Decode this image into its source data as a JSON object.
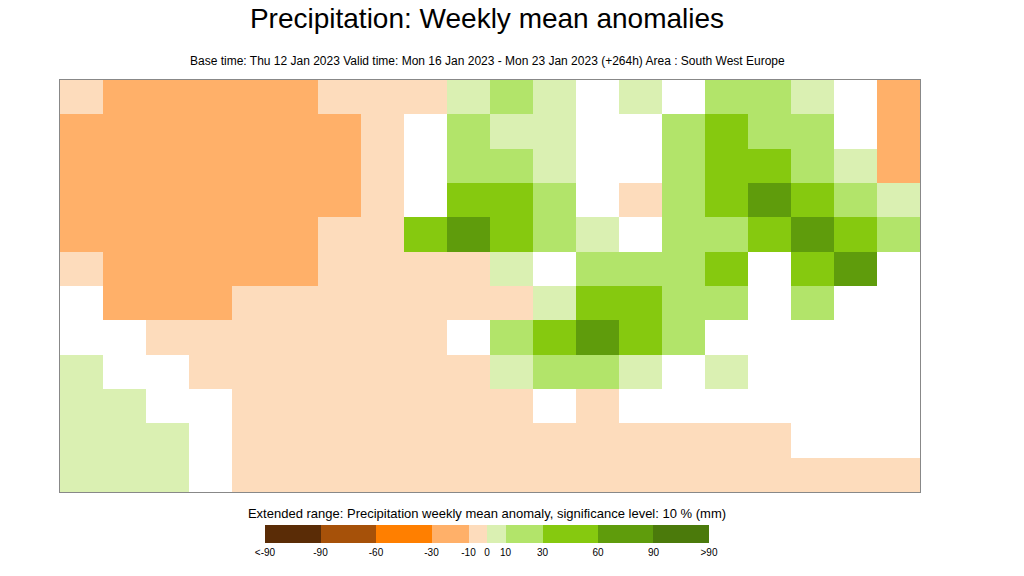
{
  "chart_data": {
    "type": "heatmap",
    "title": "Precipitation: Weekly mean anomalies",
    "subtitle": "Base time: Thu 12 Jan 2023 Valid time: Mon 16 Jan 2023 - Mon 23 Jan 2023 (+264h) Area : South West Europe",
    "tick_labels": false,
    "grid": false,
    "cells": [
      [
        -5,
        -20,
        -20,
        -20,
        -20,
        -20,
        -5,
        -5,
        -5,
        5,
        15,
        5,
        null,
        5,
        null,
        15,
        15,
        5,
        null,
        -20
      ],
      [
        -20,
        -20,
        -20,
        -20,
        -20,
        -20,
        -20,
        -5,
        null,
        15,
        5,
        5,
        null,
        null,
        15,
        30,
        15,
        15,
        null,
        -20
      ],
      [
        -20,
        -20,
        -20,
        -20,
        -20,
        -20,
        -20,
        -5,
        null,
        15,
        15,
        5,
        null,
        null,
        20,
        45,
        30,
        15,
        5,
        -20
      ],
      [
        -20,
        -20,
        -20,
        -20,
        -20,
        -20,
        -20,
        -5,
        null,
        30,
        40,
        20,
        null,
        -5,
        15,
        30,
        70,
        40,
        15,
        5
      ],
      [
        -20,
        -20,
        -20,
        -20,
        -20,
        -20,
        -5,
        -5,
        40,
        70,
        45,
        15,
        5,
        null,
        20,
        15,
        40,
        70,
        30,
        20
      ],
      [
        -5,
        -20,
        -20,
        -20,
        -20,
        -20,
        -5,
        -5,
        -5,
        -5,
        5,
        null,
        15,
        15,
        20,
        30,
        null,
        40,
        60,
        null
      ],
      [
        null,
        -20,
        -20,
        -20,
        -5,
        -5,
        -5,
        -5,
        -5,
        -5,
        -5,
        5,
        30,
        30,
        15,
        20,
        null,
        15,
        null,
        null
      ],
      [
        null,
        null,
        -5,
        -5,
        -5,
        -5,
        -5,
        -5,
        -5,
        null,
        15,
        40,
        70,
        40,
        15,
        null,
        null,
        null,
        null,
        null
      ],
      [
        5,
        null,
        null,
        -5,
        -5,
        -5,
        -5,
        -5,
        -5,
        -5,
        5,
        15,
        15,
        5,
        null,
        5,
        null,
        null,
        null,
        null
      ],
      [
        5,
        5,
        null,
        null,
        -5,
        -5,
        -5,
        -5,
        -5,
        -5,
        -5,
        null,
        -5,
        null,
        null,
        null,
        null,
        null,
        null,
        null
      ],
      [
        5,
        5,
        5,
        null,
        -5,
        -5,
        -5,
        -5,
        -5,
        -5,
        -5,
        -5,
        -5,
        -5,
        -5,
        -5,
        -5,
        null,
        null,
        null
      ],
      [
        5,
        5,
        5,
        null,
        -5,
        -5,
        -5,
        -5,
        -5,
        -5,
        -5,
        -5,
        -5,
        -5,
        -5,
        -5,
        -5,
        -5,
        -5,
        -5
      ]
    ],
    "colorbar": {
      "title": "Extended range: Precipitation weekly mean anomaly, significance level: 10 % (mm)",
      "range": [
        -120,
        120
      ],
      "ticks": [
        {
          "value": -120,
          "label": "<-90"
        },
        -90,
        -60,
        -30,
        -10,
        0,
        10,
        30,
        60,
        90,
        {
          "value": 120,
          "label": ">90"
        }
      ],
      "colors": [
        "#5a2c06",
        "#a65109",
        "#ff7f00",
        "#ffb069",
        "#fddcbc",
        "#daf0b2",
        "#b2e46a",
        "#86c90f",
        "#5f9c0c",
        "#4b7a0b"
      ]
    }
  }
}
